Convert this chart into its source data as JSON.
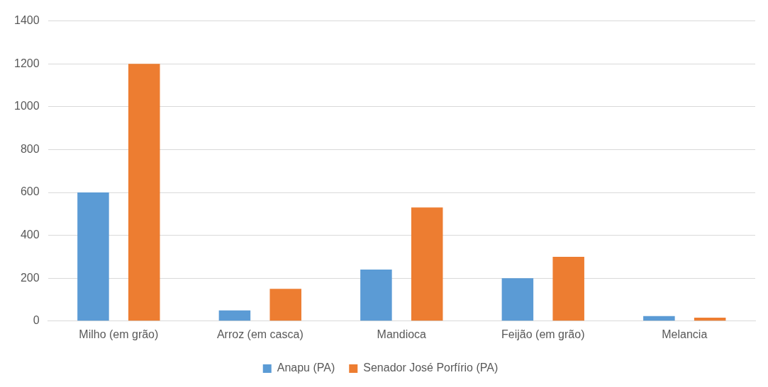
{
  "chart_data": {
    "type": "bar",
    "categories": [
      "Milho (em grão)",
      "Arroz (em casca)",
      "Mandioca",
      "Feijão (em grão)",
      "Melancia"
    ],
    "series": [
      {
        "name": "Anapu (PA)",
        "color": "#5b9bd5",
        "values": [
          600,
          50,
          240,
          200,
          23
        ]
      },
      {
        "name": "Senador José Porfírio (PA)",
        "color": "#ed7d31",
        "values": [
          1200,
          150,
          530,
          300,
          16
        ]
      }
    ],
    "ylim": [
      0,
      1400
    ],
    "yticks": [
      0,
      200,
      400,
      600,
      800,
      1000,
      1200,
      1400
    ],
    "grid": "y",
    "legend": "bottom"
  }
}
